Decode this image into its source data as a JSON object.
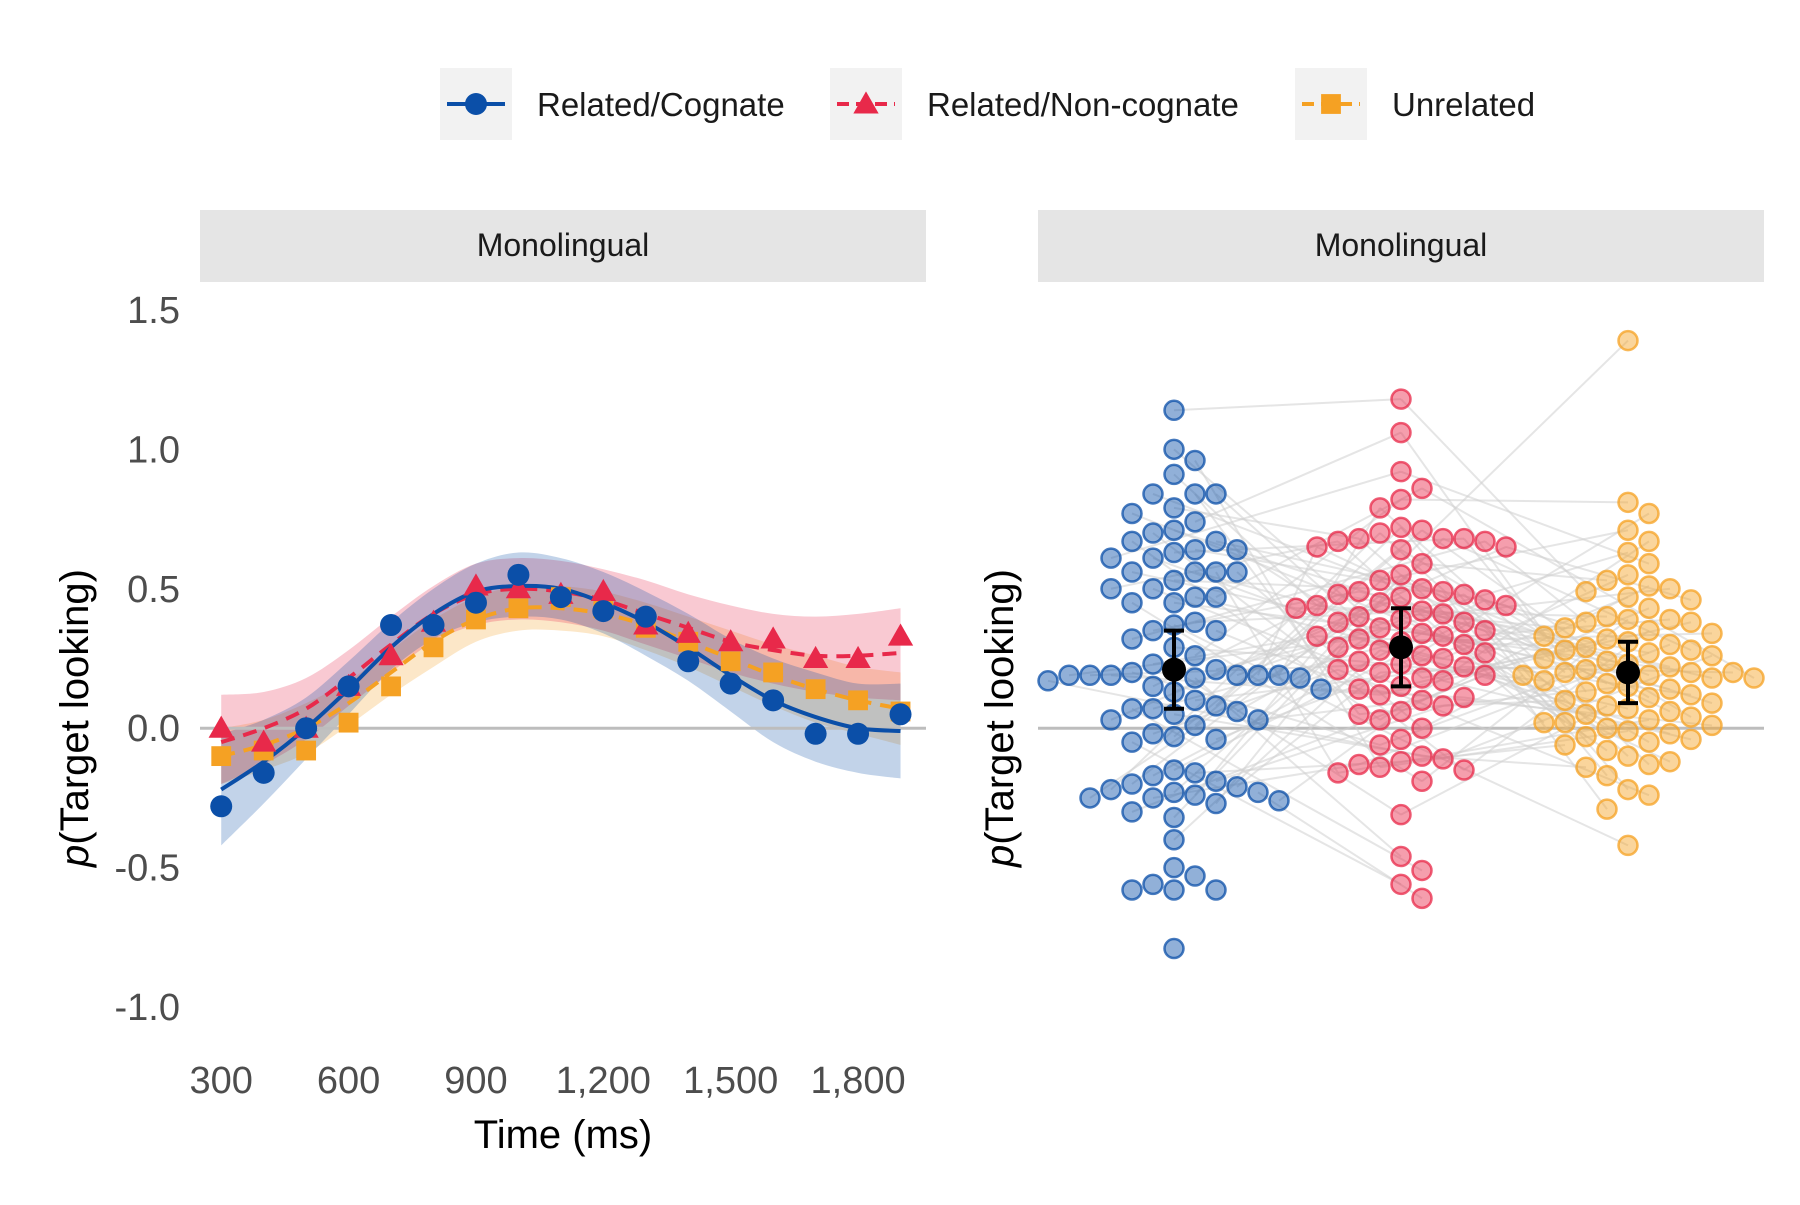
{
  "colors": {
    "related_cognate": "#0b4fa8",
    "related_noncognate": "#e8294a",
    "unrelated": "#f5a123",
    "strip_bg": "#e5e5e5",
    "legend_key_bg": "#f2f2f2",
    "zero_line": "#bdbdbd",
    "pair_line": "#d0d0d0"
  },
  "legend": {
    "position": "top",
    "entries": [
      {
        "key": "related_cognate",
        "label": "Related/Cognate",
        "shape": "circle",
        "linetype": "solid"
      },
      {
        "key": "related_noncognate",
        "label": "Related/Non-cognate",
        "shape": "triangle",
        "linetype": "dashed"
      },
      {
        "key": "unrelated",
        "label": "Unrelated",
        "shape": "square",
        "linetype": "dashed"
      }
    ]
  },
  "chart_data": [
    {
      "type": "line",
      "panel": "left",
      "strip_label": "Monolingual",
      "xlabel": "Time (ms)",
      "ylabel_italic": "p",
      "ylabel_rest": "(Target looking)",
      "xlim": [
        250,
        1960
      ],
      "ylim": [
        -1.1,
        1.6
      ],
      "x_ticks": [
        300,
        600,
        900,
        1200,
        1500,
        1800
      ],
      "x_tick_labels": [
        "300",
        "600",
        "900",
        "1,200",
        "1,500",
        "1,800"
      ],
      "y_ticks": [
        -1.0,
        -0.5,
        0.0,
        0.5,
        1.0,
        1.5
      ],
      "y_tick_labels": [
        "-1.0",
        "-0.5",
        "0.0",
        "0.5",
        "1.0",
        "1.5"
      ],
      "grid": false,
      "x": [
        300,
        400,
        500,
        600,
        700,
        800,
        900,
        1000,
        1100,
        1200,
        1300,
        1400,
        1500,
        1600,
        1700,
        1800,
        1900
      ],
      "series": [
        {
          "key": "related_cognate",
          "values": [
            -0.28,
            -0.16,
            0.0,
            0.15,
            0.37,
            0.37,
            0.45,
            0.55,
            0.47,
            0.42,
            0.4,
            0.24,
            0.16,
            0.1,
            -0.02,
            -0.02,
            0.05
          ],
          "fit": [
            -0.22,
            -0.12,
            0.0,
            0.14,
            0.29,
            0.41,
            0.49,
            0.51,
            0.5,
            0.45,
            0.38,
            0.29,
            0.19,
            0.1,
            0.04,
            0.0,
            -0.01
          ],
          "ci_low": [
            -0.42,
            -0.27,
            -0.11,
            0.05,
            0.21,
            0.32,
            0.38,
            0.4,
            0.39,
            0.34,
            0.26,
            0.17,
            0.06,
            -0.05,
            -0.12,
            -0.16,
            -0.18
          ],
          "ci_high": [
            -0.02,
            0.03,
            0.11,
            0.24,
            0.38,
            0.5,
            0.59,
            0.63,
            0.61,
            0.56,
            0.49,
            0.41,
            0.32,
            0.25,
            0.2,
            0.16,
            0.16
          ]
        },
        {
          "key": "related_noncognate",
          "values": [
            0.0,
            -0.05,
            0.0,
            0.15,
            0.26,
            0.38,
            0.51,
            0.5,
            0.48,
            0.49,
            0.37,
            0.34,
            0.31,
            0.32,
            0.25,
            0.25,
            0.33
          ],
          "fit": [
            -0.05,
            0.0,
            0.07,
            0.18,
            0.3,
            0.41,
            0.48,
            0.5,
            0.49,
            0.46,
            0.41,
            0.36,
            0.31,
            0.28,
            0.26,
            0.26,
            0.27
          ],
          "ci_low": [
            -0.2,
            -0.13,
            -0.04,
            0.08,
            0.2,
            0.31,
            0.37,
            0.39,
            0.38,
            0.35,
            0.3,
            0.25,
            0.2,
            0.16,
            0.13,
            0.11,
            0.1
          ],
          "ci_high": [
            0.12,
            0.13,
            0.18,
            0.28,
            0.4,
            0.51,
            0.59,
            0.61,
            0.6,
            0.57,
            0.53,
            0.48,
            0.44,
            0.41,
            0.4,
            0.41,
            0.43
          ]
        },
        {
          "key": "unrelated",
          "values": [
            -0.1,
            -0.08,
            -0.08,
            0.02,
            0.15,
            0.29,
            0.39,
            0.43,
            0.47,
            0.43,
            0.36,
            0.31,
            0.24,
            0.2,
            0.14,
            0.1,
            0.06
          ],
          "fit": [
            -0.1,
            -0.06,
            0.0,
            0.09,
            0.2,
            0.31,
            0.39,
            0.43,
            0.43,
            0.41,
            0.37,
            0.31,
            0.25,
            0.19,
            0.14,
            0.1,
            0.07
          ],
          "ci_low": [
            -0.2,
            -0.15,
            -0.09,
            0.01,
            0.12,
            0.22,
            0.31,
            0.35,
            0.35,
            0.33,
            0.28,
            0.22,
            0.15,
            0.08,
            0.02,
            -0.02,
            -0.06
          ],
          "ci_high": [
            0.0,
            0.03,
            0.09,
            0.17,
            0.28,
            0.39,
            0.47,
            0.51,
            0.51,
            0.49,
            0.45,
            0.4,
            0.35,
            0.3,
            0.26,
            0.22,
            0.2
          ]
        }
      ]
    },
    {
      "type": "scatter",
      "panel": "right",
      "strip_label": "Monolingual",
      "xlabel": "",
      "ylabel_italic": "p",
      "ylabel_rest": "(Target looking)",
      "ylim": [
        -1.1,
        1.6
      ],
      "grid": false,
      "x_ticks": [],
      "y_ticks": [],
      "groups": [
        {
          "key": "related_cognate",
          "mean": 0.21,
          "ci_low": 0.07,
          "ci_high": 0.35,
          "values": [
            1.14,
            1.0,
            0.96,
            0.91,
            0.84,
            0.84,
            0.84,
            0.79,
            0.77,
            0.74,
            0.71,
            0.7,
            0.67,
            0.67,
            0.64,
            0.64,
            0.63,
            0.61,
            0.61,
            0.56,
            0.56,
            0.56,
            0.56,
            0.53,
            0.5,
            0.5,
            0.47,
            0.47,
            0.45,
            0.45,
            0.38,
            0.37,
            0.35,
            0.35,
            0.32,
            0.29,
            0.26,
            0.23,
            0.21,
            0.21,
            0.2,
            0.19,
            0.19,
            0.19,
            0.19,
            0.19,
            0.19,
            0.18,
            0.18,
            0.17,
            0.15,
            0.14,
            0.13,
            0.1,
            0.08,
            0.07,
            0.07,
            0.06,
            0.05,
            0.03,
            0.03,
            0.01,
            -0.02,
            -0.03,
            -0.04,
            -0.05,
            -0.15,
            -0.16,
            -0.17,
            -0.19,
            -0.2,
            -0.21,
            -0.22,
            -0.23,
            -0.23,
            -0.24,
            -0.25,
            -0.25,
            -0.26,
            -0.27,
            -0.3,
            -0.32,
            -0.4,
            -0.5,
            -0.53,
            -0.56,
            -0.58,
            -0.58,
            -0.58,
            -0.79
          ]
        },
        {
          "key": "related_noncognate",
          "values": [
            1.18,
            1.06,
            0.92,
            0.86,
            0.82,
            0.79,
            0.72,
            0.71,
            0.7,
            0.68,
            0.68,
            0.68,
            0.67,
            0.67,
            0.65,
            0.65,
            0.64,
            0.59,
            0.55,
            0.53,
            0.5,
            0.49,
            0.49,
            0.48,
            0.48,
            0.47,
            0.46,
            0.45,
            0.44,
            0.44,
            0.43,
            0.42,
            0.41,
            0.4,
            0.39,
            0.38,
            0.38,
            0.36,
            0.35,
            0.34,
            0.33,
            0.33,
            0.32,
            0.31,
            0.3,
            0.29,
            0.28,
            0.27,
            0.26,
            0.25,
            0.24,
            0.23,
            0.22,
            0.21,
            0.2,
            0.19,
            0.18,
            0.17,
            0.15,
            0.14,
            0.12,
            0.11,
            0.1,
            0.08,
            0.06,
            0.05,
            0.03,
            0.0,
            -0.04,
            -0.06,
            -0.1,
            -0.11,
            -0.12,
            -0.13,
            -0.14,
            -0.15,
            -0.16,
            -0.19,
            -0.31,
            -0.46,
            -0.51,
            -0.56,
            -0.61
          ],
          "mean": 0.29,
          "ci_low": 0.15,
          "ci_high": 0.43
        },
        {
          "key": "unrelated",
          "values": [
            1.39,
            0.81,
            0.77,
            0.71,
            0.67,
            0.63,
            0.59,
            0.55,
            0.53,
            0.51,
            0.5,
            0.49,
            0.47,
            0.46,
            0.43,
            0.4,
            0.39,
            0.39,
            0.38,
            0.38,
            0.36,
            0.35,
            0.34,
            0.33,
            0.32,
            0.31,
            0.3,
            0.29,
            0.28,
            0.28,
            0.27,
            0.26,
            0.25,
            0.24,
            0.23,
            0.22,
            0.21,
            0.2,
            0.2,
            0.2,
            0.19,
            0.19,
            0.18,
            0.18,
            0.17,
            0.16,
            0.15,
            0.14,
            0.13,
            0.12,
            0.11,
            0.1,
            0.09,
            0.08,
            0.07,
            0.06,
            0.05,
            0.04,
            0.03,
            0.02,
            0.02,
            0.01,
            0.0,
            -0.01,
            -0.02,
            -0.03,
            -0.04,
            -0.05,
            -0.06,
            -0.08,
            -0.1,
            -0.12,
            -0.13,
            -0.14,
            -0.17,
            -0.22,
            -0.24,
            -0.29,
            -0.42
          ],
          "mean": 0.2,
          "ci_low": 0.09,
          "ci_high": 0.31
        }
      ]
    }
  ]
}
